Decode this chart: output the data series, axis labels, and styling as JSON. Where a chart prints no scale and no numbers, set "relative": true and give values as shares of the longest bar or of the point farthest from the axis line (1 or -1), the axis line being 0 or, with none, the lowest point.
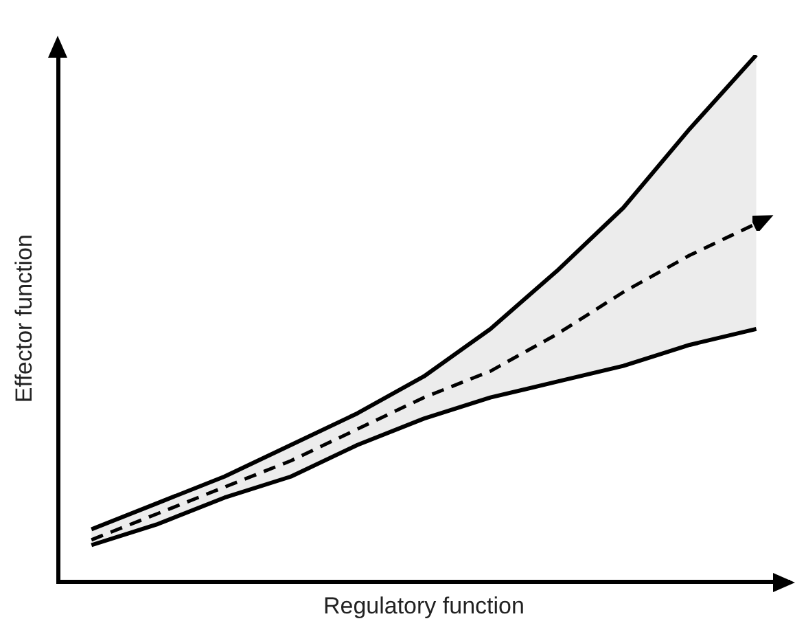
{
  "chart_data": {
    "type": "line",
    "relative": true,
    "xlabel": "Regulatory function",
    "ylabel": "Effector function",
    "legend": false,
    "grid": false,
    "categories": [
      null,
      null,
      null,
      null,
      null,
      null,
      null,
      null,
      null,
      null,
      null
    ],
    "series": [
      {
        "color": "#000000",
        "line_style": "solid",
        "values": [
          0.1,
          0.15,
          0.2,
          0.26,
          0.32,
          0.39,
          0.48,
          0.59,
          0.71,
          0.86,
          1.0
        ]
      },
      {
        "color": "#000000",
        "line_style": "solid",
        "values": [
          0.07,
          0.11,
          0.16,
          0.2,
          0.26,
          0.31,
          0.35,
          0.38,
          0.41,
          0.45,
          0.48
        ]
      },
      {
        "color": "#000000",
        "line_style": "dashed",
        "values": [
          0.08,
          0.13,
          0.18,
          0.23,
          0.29,
          0.35,
          0.4,
          0.47,
          0.55,
          0.62,
          0.68
        ],
        "lower": [
          0.07,
          0.11,
          0.16,
          0.2,
          0.26,
          0.31,
          0.35,
          0.38,
          0.41,
          0.45,
          0.48
        ],
        "upper": [
          0.1,
          0.15,
          0.2,
          0.26,
          0.32,
          0.39,
          0.48,
          0.59,
          0.71,
          0.86,
          1.0
        ]
      }
    ]
  }
}
